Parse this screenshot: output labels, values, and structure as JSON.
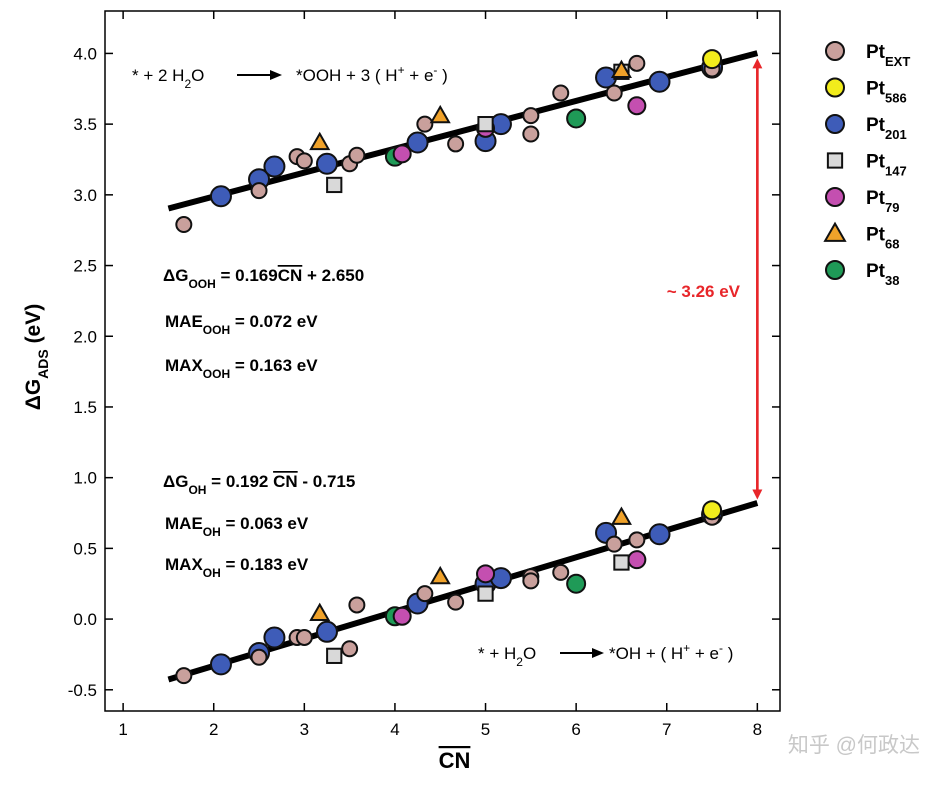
{
  "chart_data": {
    "type": "scatter",
    "xlabel": "CN",
    "ylabel_main": "ΔG",
    "ylabel_sub": "ADS",
    "ylabel_unit": "(eV)",
    "xlim": [
      0.8,
      8.25
    ],
    "ylim": [
      -0.65,
      4.3
    ],
    "xticks": [
      1,
      2,
      3,
      4,
      5,
      6,
      7,
      8
    ],
    "yticks": [
      -0.5,
      0.0,
      0.5,
      1.0,
      1.5,
      2.0,
      2.5,
      3.0,
      3.5,
      4.0
    ],
    "ytick_labels": [
      "-0.5",
      "0.0",
      "0.5",
      "1.0",
      "1.5",
      "2.0",
      "2.5",
      "3.0",
      "3.5",
      "4.0"
    ],
    "fit_lines": [
      {
        "name": "OOH",
        "slope": 0.169,
        "intercept": 2.65,
        "x_range": [
          1.5,
          8.0
        ]
      },
      {
        "name": "OH",
        "slope": 0.192,
        "intercept": -0.715,
        "x_range": [
          1.5,
          8.0
        ]
      }
    ],
    "legend": [
      {
        "key": "Pt_EXT",
        "main": "Pt",
        "sub": "EXT",
        "marker": "circle",
        "color": "#c9a09c"
      },
      {
        "key": "Pt_586",
        "main": "Pt",
        "sub": "586",
        "marker": "circle",
        "color": "#f2ec1c"
      },
      {
        "key": "Pt_201",
        "main": "Pt",
        "sub": "201",
        "marker": "circle",
        "color": "#3e5cb8"
      },
      {
        "key": "Pt_147",
        "main": "Pt",
        "sub": "147",
        "marker": "square",
        "color": "#d9d9d9"
      },
      {
        "key": "Pt_79",
        "main": "Pt",
        "sub": "79",
        "marker": "circle",
        "color": "#c44fb0"
      },
      {
        "key": "Pt_68",
        "main": "Pt",
        "sub": "68",
        "marker": "triangle",
        "color": "#f0a22a"
      },
      {
        "key": "Pt_38",
        "main": "Pt",
        "sub": "38",
        "marker": "circle",
        "color": "#1f9a57"
      }
    ],
    "series": [
      {
        "name": "Pt_EXT",
        "points": [
          [
            1.67,
            2.79
          ],
          [
            2.5,
            3.03
          ],
          [
            2.92,
            3.27
          ],
          [
            3.0,
            3.24
          ],
          [
            3.5,
            3.22
          ],
          [
            3.58,
            3.28
          ],
          [
            4.33,
            3.5
          ],
          [
            4.67,
            3.36
          ],
          [
            5.5,
            3.56
          ],
          [
            5.5,
            3.43
          ],
          [
            5.83,
            3.72
          ],
          [
            6.42,
            3.72
          ],
          [
            6.67,
            3.93
          ],
          [
            7.5,
            3.89
          ],
          [
            1.67,
            -0.4
          ],
          [
            2.5,
            -0.27
          ],
          [
            2.92,
            -0.13
          ],
          [
            3.0,
            -0.13
          ],
          [
            3.5,
            -0.21
          ],
          [
            3.58,
            0.1
          ],
          [
            4.33,
            0.18
          ],
          [
            4.67,
            0.12
          ],
          [
            5.5,
            0.3
          ],
          [
            5.5,
            0.27
          ],
          [
            5.83,
            0.33
          ],
          [
            6.42,
            0.53
          ],
          [
            6.67,
            0.56
          ],
          [
            7.5,
            0.72
          ]
        ]
      },
      {
        "name": "Pt_586",
        "points": [
          [
            7.5,
            3.96
          ],
          [
            7.5,
            0.77
          ]
        ]
      },
      {
        "name": "Pt_201",
        "points": [
          [
            2.08,
            2.99
          ],
          [
            2.5,
            3.11
          ],
          [
            2.67,
            3.2
          ],
          [
            3.25,
            3.22
          ],
          [
            4.25,
            3.37
          ],
          [
            5.0,
            3.38
          ],
          [
            5.17,
            3.5
          ],
          [
            6.33,
            3.83
          ],
          [
            6.92,
            3.8
          ],
          [
            7.5,
            3.9
          ],
          [
            2.08,
            -0.32
          ],
          [
            2.5,
            -0.24
          ],
          [
            2.67,
            -0.13
          ],
          [
            3.25,
            -0.09
          ],
          [
            4.25,
            0.11
          ],
          [
            5.0,
            0.25
          ],
          [
            5.17,
            0.29
          ],
          [
            6.33,
            0.61
          ],
          [
            6.92,
            0.6
          ],
          [
            7.5,
            0.74
          ]
        ]
      },
      {
        "name": "Pt_147",
        "points": [
          [
            3.33,
            3.07
          ],
          [
            5.0,
            3.5
          ],
          [
            6.5,
            3.87
          ],
          [
            3.33,
            -0.26
          ],
          [
            5.0,
            0.18
          ],
          [
            6.5,
            0.4
          ]
        ]
      },
      {
        "name": "Pt_79",
        "points": [
          [
            4.08,
            3.29
          ],
          [
            5.0,
            3.47
          ],
          [
            6.67,
            3.63
          ],
          [
            4.08,
            0.02
          ],
          [
            5.0,
            0.32
          ],
          [
            6.67,
            0.42
          ]
        ]
      },
      {
        "name": "Pt_68",
        "points": [
          [
            3.17,
            3.37
          ],
          [
            4.5,
            3.56
          ],
          [
            6.5,
            3.88
          ],
          [
            3.17,
            0.04
          ],
          [
            4.5,
            0.3
          ],
          [
            6.5,
            0.72
          ]
        ]
      },
      {
        "name": "Pt_38",
        "points": [
          [
            4.0,
            3.27
          ],
          [
            6.0,
            3.54
          ],
          [
            4.0,
            0.02
          ],
          [
            6.0,
            0.25
          ]
        ]
      }
    ],
    "annotations": {
      "top_reaction": {
        "lhs": "* + 2 H",
        "lhs_sub": "2",
        "lhs_end": "O",
        "rhs": "*OOH + 3 ( H",
        "rhs_sup": "+",
        "rhs_mid": " + e",
        "rhs_sup2": "-",
        "rhs_end": " )"
      },
      "bottom_reaction": {
        "lhs": "* + H",
        "lhs_sub": "2",
        "lhs_end": "O",
        "rhs": "*OH + ( H",
        "rhs_sup": "+",
        "rhs_mid": " + e",
        "rhs_sup2": "-",
        "rhs_end": " )"
      },
      "ooh_fit": {
        "pre": "ΔG",
        "sub": "OOH",
        "eq": " = 0.169",
        "cn": "CN",
        "post": " + 2.650"
      },
      "ooh_mae": {
        "pre": "MAE",
        "sub": "OOH",
        "post": " = 0.072 eV"
      },
      "ooh_max": {
        "pre": "MAX",
        "sub": "OOH",
        "post": " = 0.163 eV"
      },
      "oh_fit": {
        "pre": "ΔG",
        "sub": "OH",
        "eq": " = 0.192 ",
        "cn": "CN",
        "post": " - 0.715"
      },
      "oh_mae": {
        "pre": "MAE",
        "sub": "OH",
        "post": " = 0.063 eV"
      },
      "oh_max": {
        "pre": "MAX",
        "sub": "OH",
        "post": " = 0.183 eV"
      },
      "gap": "~ 3.26 eV",
      "gap_x": 8.0,
      "gap_y": [
        0.81,
        4.0
      ]
    },
    "watermark": "知乎 @何政达"
  },
  "colors": {
    "axis": "#000000",
    "fit": "#000000",
    "gap_arrow": "#e8262a",
    "marker_edge": "#111111",
    "watermark": "#c8c8c8"
  }
}
